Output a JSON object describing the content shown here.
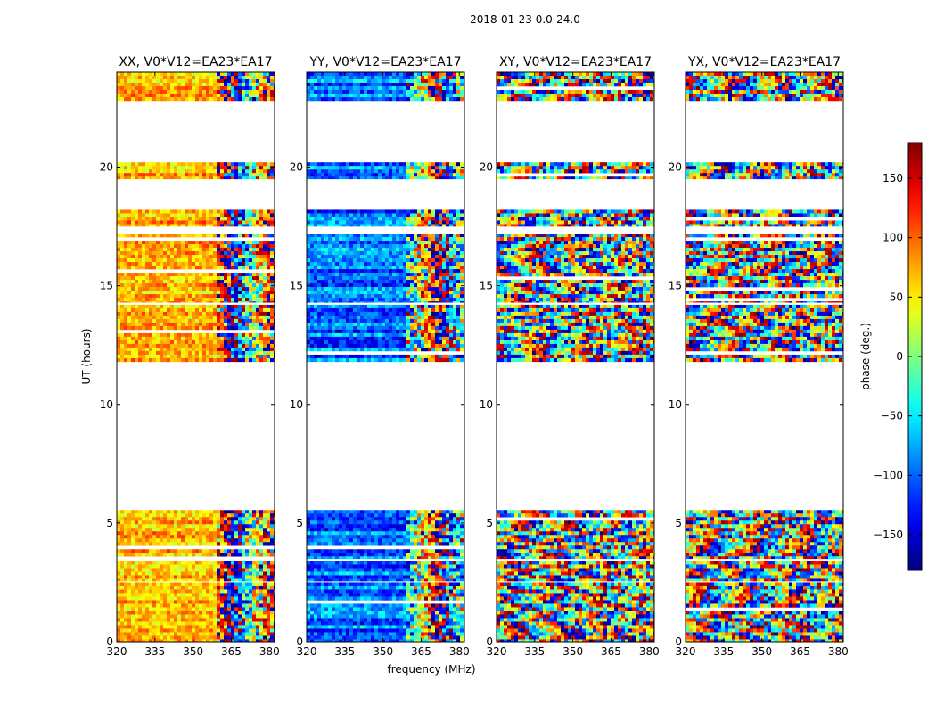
{
  "chart_data": {
    "type": "heatmap",
    "suptitle": "2018-01-23 0.0-24.0",
    "xlabel": "frequency (MHz)",
    "ylabel": "UT (hours)",
    "xlim": [
      320,
      382
    ],
    "ylim": [
      0,
      24
    ],
    "xticks": [
      320,
      335,
      350,
      365,
      380
    ],
    "yticks": [
      0,
      5,
      10,
      15,
      20
    ],
    "panels": [
      {
        "title": "XX, V0*V12=EA23*EA17",
        "base_phase": [
          50,
          90
        ],
        "phase_spread": 70
      },
      {
        "title": "YY, V0*V12=EA23*EA17",
        "base_phase": [
          -130,
          -60
        ],
        "phase_spread": 70
      },
      {
        "title": "XY, V0*V12=EA23*EA17",
        "base_phase": [
          -180,
          180
        ],
        "phase_spread": 360
      },
      {
        "title": "YX, V0*V12=EA23*EA17",
        "base_phase": [
          -180,
          180
        ],
        "phase_spread": 360
      }
    ],
    "data_time_ranges": [
      [
        0.0,
        2.5
      ],
      [
        2.55,
        3.4
      ],
      [
        3.5,
        5.55
      ],
      [
        11.8,
        14.2
      ],
      [
        14.3,
        17.2
      ],
      [
        17.5,
        18.2
      ],
      [
        19.5,
        20.2
      ],
      [
        22.8,
        24.0
      ]
    ],
    "colorbar": {
      "label": "phase (deg.)",
      "range": [
        -180,
        180
      ],
      "ticks": [
        -150,
        -100,
        -50,
        0,
        50,
        100,
        150
      ],
      "tick_labels": [
        "−150",
        "−100",
        "−50",
        "0",
        "50",
        "100",
        "150"
      ],
      "colormap": "jet"
    }
  }
}
